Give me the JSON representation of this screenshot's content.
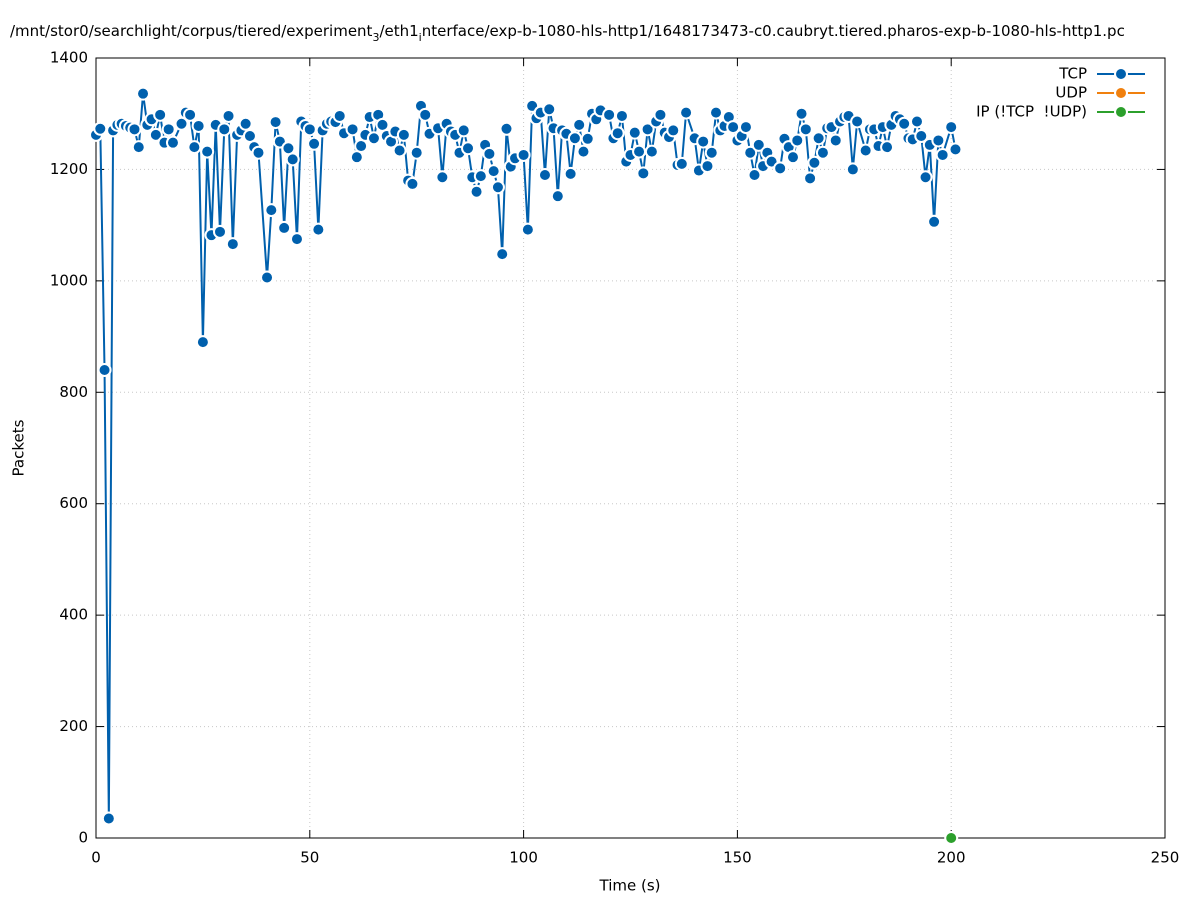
{
  "chart_data": {
    "type": "line",
    "title": [
      {
        "text": "/mnt/stor0/searchlight/corpus/tiered/experiment"
      },
      {
        "text": "3",
        "sub": true
      },
      {
        "text": "/eth1"
      },
      {
        "text": "i",
        "sub": true
      },
      {
        "text": "nterface/exp-b-1080-hls-http1/1648173473-c0.caubryt.tiered.pharos-exp-b-1080-hls-http1.pc"
      }
    ],
    "x_label": "Time (s)",
    "y_label": "Packets",
    "xlim": [
      0,
      250
    ],
    "xticks": [
      0,
      50,
      100,
      150,
      200,
      250
    ],
    "ylim": [
      0,
      1400
    ],
    "yticks": [
      0,
      200,
      400,
      600,
      800,
      1000,
      1200,
      1400
    ],
    "grid": true,
    "legend": "top-right",
    "series": [
      {
        "name": "TCP",
        "color": "#0060ad",
        "x": [
          0,
          1,
          2,
          3,
          4,
          5,
          6,
          7,
          8,
          9,
          10,
          11,
          12,
          13,
          14,
          15,
          16,
          17,
          18,
          20,
          21,
          22,
          23,
          24,
          25,
          26,
          27,
          28,
          29,
          30,
          31,
          32,
          33,
          34,
          35,
          36,
          37,
          38,
          40,
          41,
          42,
          43,
          44,
          45,
          46,
          47,
          48,
          49,
          50,
          51,
          52,
          53,
          54,
          55,
          56,
          57,
          58,
          60,
          61,
          62,
          63,
          64,
          65,
          66,
          67,
          68,
          69,
          70,
          71,
          72,
          73,
          74,
          75,
          76,
          77,
          78,
          80,
          81,
          82,
          83,
          84,
          85,
          86,
          87,
          88,
          89,
          90,
          91,
          92,
          93,
          94,
          95,
          96,
          97,
          98,
          100,
          101,
          102,
          103,
          104,
          105,
          106,
          107,
          108,
          109,
          110,
          111,
          112,
          113,
          114,
          115,
          116,
          117,
          118,
          120,
          121,
          122,
          123,
          124,
          125,
          126,
          127,
          128,
          129,
          130,
          131,
          132,
          133,
          134,
          135,
          136,
          137,
          138,
          140,
          141,
          142,
          143,
          144,
          145,
          146,
          147,
          148,
          149,
          150,
          151,
          152,
          153,
          154,
          155,
          156,
          157,
          158,
          160,
          161,
          162,
          163,
          164,
          165,
          166,
          167,
          168,
          169,
          170,
          171,
          172,
          173,
          174,
          175,
          176,
          177,
          178,
          180,
          181,
          182,
          183,
          184,
          185,
          186,
          187,
          188,
          189,
          190,
          191,
          192,
          193,
          194,
          195,
          196,
          197,
          198,
          200,
          201
        ],
        "values": [
          1262,
          1273,
          840,
          35,
          1270,
          1280,
          1282,
          1278,
          1275,
          1272,
          1240,
          1336,
          1280,
          1290,
          1262,
          1298,
          1248,
          1272,
          1248,
          1282,
          1302,
          1298,
          1240,
          1278,
          890,
          1232,
          1082,
          1280,
          1088,
          1272,
          1296,
          1066,
          1262,
          1270,
          1282,
          1260,
          1240,
          1230,
          1006,
          1127,
          1285,
          1250,
          1095,
          1238,
          1218,
          1075,
          1286,
          1278,
          1272,
          1246,
          1092,
          1270,
          1282,
          1286,
          1285,
          1296,
          1265,
          1272,
          1222,
          1242,
          1262,
          1294,
          1256,
          1298,
          1280,
          1260,
          1250,
          1268,
          1234,
          1262,
          1180,
          1174,
          1230,
          1314,
          1298,
          1264,
          1274,
          1186,
          1282,
          1268,
          1262,
          1230,
          1270,
          1238,
          1186,
          1160,
          1188,
          1244,
          1228,
          1197,
          1168,
          1048,
          1273,
          1205,
          1220,
          1226,
          1092,
          1314,
          1292,
          1302,
          1190,
          1308,
          1274,
          1152,
          1270,
          1264,
          1192,
          1256,
          1280,
          1232,
          1255,
          1300,
          1290,
          1306,
          1298,
          1256,
          1265,
          1296,
          1214,
          1226,
          1266,
          1232,
          1193,
          1272,
          1232,
          1286,
          1298,
          1266,
          1258,
          1270,
          1208,
          1210,
          1302,
          1256,
          1198,
          1250,
          1206,
          1230,
          1302,
          1270,
          1278,
          1294,
          1276,
          1252,
          1260,
          1276,
          1230,
          1190,
          1244,
          1206,
          1230,
          1214,
          1202,
          1255,
          1240,
          1222,
          1252,
          1300,
          1272,
          1184,
          1212,
          1256,
          1230,
          1274,
          1276,
          1252,
          1286,
          1294,
          1296,
          1200,
          1286,
          1234,
          1272,
          1272,
          1242,
          1276,
          1240,
          1280,
          1296,
          1290,
          1282,
          1256,
          1254,
          1286,
          1260,
          1186,
          1244,
          1106,
          1252,
          1226,
          1276,
          1236
        ]
      },
      {
        "name": "UDP",
        "color": "#f0800e",
        "x": [],
        "values": []
      },
      {
        "name": "IP (!TCP  !UDP)",
        "color": "#2ca02c",
        "x": [
          200
        ],
        "values": [
          0
        ]
      }
    ]
  }
}
